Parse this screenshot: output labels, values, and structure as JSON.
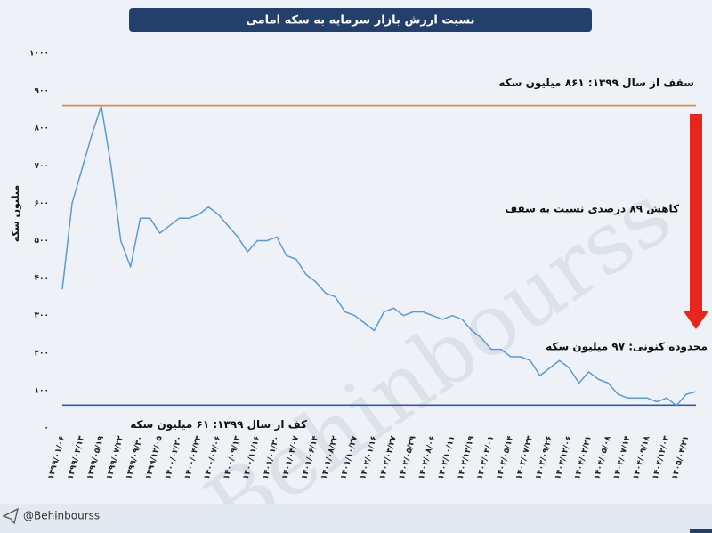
{
  "chart_data": {
    "type": "line",
    "title": "نسبت ارزش بازار سرمایه به سکه امامی",
    "y_label": "میلیون سکه",
    "watermark": "Behinbourss",
    "handle": "@Behinbourss",
    "categories": [
      "۱۳۹۹/۰۱/۰۶",
      null,
      "۱۳۹۹/۰۳/۱۳",
      null,
      "۱۳۹۹/۰۵/۱۹",
      null,
      "۱۳۹۹/۰۷/۲۲",
      null,
      "۱۳۹۹/۰۹/۳۰",
      null,
      "۱۳۹۹/۱۲/۰۵",
      null,
      "۱۴۰۰/۰۲/۲۰",
      null,
      "۱۴۰۰/۰۴/۲۳",
      null,
      "۱۴۰۰/۰۷/۰۶",
      null,
      "۱۴۰۰/۰۹/۱۳",
      null,
      "۱۴۰۰/۱۱/۱۶",
      null,
      "۱۴۰۱/۰۱/۳۰",
      null,
      "۱۴۰۱/۰۴/۰۷",
      null,
      "۱۴۰۱/۰۶/۱۴",
      null,
      "۱۴۰۱/۰۸/۲۲",
      null,
      "۱۴۰۱/۱۰/۲۷",
      null,
      "۱۴۰۲/۰۱/۱۶",
      null,
      "۱۴۰۲/۰۳/۲۷",
      null,
      "۱۴۰۲/۰۵/۲۹",
      null,
      "۱۴۰۲/۰۸/۰۶",
      null,
      "۱۴۰۲/۱۰/۱۱",
      null,
      "۱۴۰۲/۱۲/۱۹",
      null,
      "۱۴۰۳/۰۳/۰۱",
      null,
      "۱۴۰۳/۰۵/۱۴",
      null,
      "۱۴۰۳/۰۷/۲۳",
      null,
      "۱۴۰۳/۰۹/۲۶",
      null,
      "۱۴۰۳/۱۲/۰۶",
      null,
      "۱۴۰۴/۰۲/۲۱",
      null,
      "۱۴۰۴/۰۵/۰۸",
      null,
      "۱۴۰۴/۰۷/۱۴",
      null,
      "۱۴۰۴/۰۹/۱۸",
      null,
      "۱۴۰۴/۱۲/۰۳",
      null,
      "۱۴۰۵/۰۴/۲۱",
      null
    ],
    "series": [
      {
        "color": "#5b9bd5",
        "values": [
          370,
          600,
          690,
          780,
          860,
          700,
          500,
          430,
          560,
          560,
          520,
          540,
          560,
          560,
          570,
          590,
          570,
          540,
          510,
          470,
          500,
          500,
          510,
          460,
          450,
          410,
          390,
          360,
          350,
          310,
          300,
          280,
          260,
          310,
          320,
          300,
          310,
          310,
          300,
          290,
          300,
          290,
          260,
          240,
          210,
          210,
          190,
          190,
          180,
          140,
          160,
          180,
          160,
          120,
          150,
          130,
          120,
          90,
          80,
          80,
          80,
          70,
          80,
          60,
          90,
          97
        ]
      }
    ],
    "reference_lines": [
      {
        "value": 861,
        "color": "#e8833a",
        "label": "سقف از سال ۱۳۹۹: ۸۶۱ میلیون سکه"
      },
      {
        "value": 61,
        "color": "#2e5fa3",
        "label": "کف از سال ۱۳۹۹: ۶۱ میلیون سکه"
      }
    ],
    "annotations": [
      "کاهش ۸۹ درصدی نسبت به سقف",
      "محدوده کنونی: ۹۷ میلیون سکه"
    ],
    "ylim": [
      0,
      1000
    ],
    "yticks": [
      {
        "value": 0,
        "label": "۰"
      },
      {
        "value": 100,
        "label": "۱۰۰"
      },
      {
        "value": 200,
        "label": "۲۰۰"
      },
      {
        "value": 300,
        "label": "۳۰۰"
      },
      {
        "value": 400,
        "label": "۴۰۰"
      },
      {
        "value": 500,
        "label": "۵۰۰"
      },
      {
        "value": 600,
        "label": "۶۰۰"
      },
      {
        "value": 700,
        "label": "۷۰۰"
      },
      {
        "value": 800,
        "label": "۸۰۰"
      },
      {
        "value": 900,
        "label": "۹۰۰"
      },
      {
        "value": 1000,
        "label": "۱۰۰۰"
      }
    ]
  }
}
